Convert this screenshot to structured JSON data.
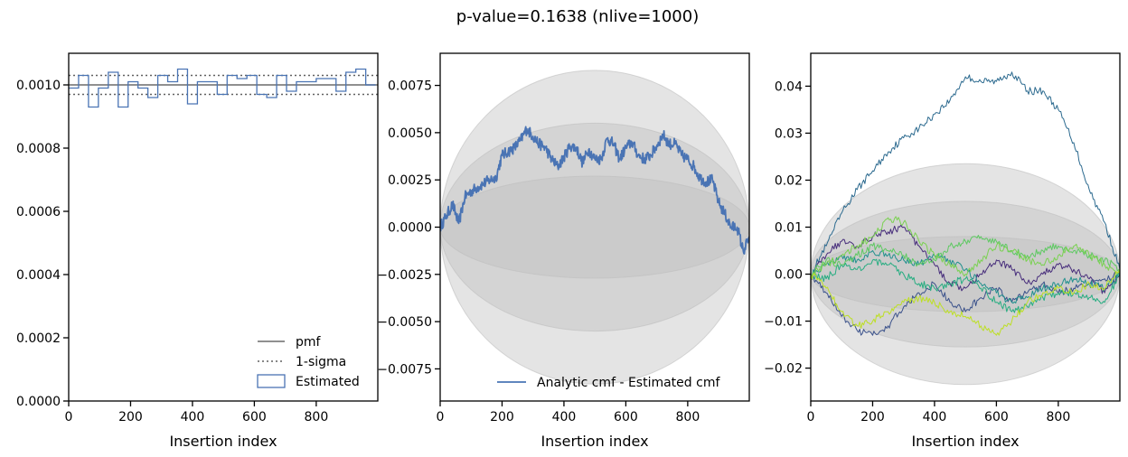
{
  "figure": {
    "title": "p-value=0.1638 (nlive=1000)"
  },
  "chart_data": [
    {
      "type": "line",
      "panel": "pmf",
      "xlabel": "Insertion index",
      "ylabel": "",
      "xlim": [
        0,
        999
      ],
      "ylim": [
        0,
        0.0011
      ],
      "xticks": [
        0,
        200,
        400,
        600,
        800
      ],
      "yticks": [
        0.0,
        0.0002,
        0.0004,
        0.0006,
        0.0008,
        0.001
      ],
      "ytick_labels": [
        "0.0000",
        "0.0002",
        "0.0004",
        "0.0006",
        "0.0008",
        "0.0010"
      ],
      "pmf": 0.001,
      "sigma_band": [
        0.00097,
        0.00103
      ],
      "histogram": {
        "bin_width": 32,
        "values": [
          0.00099,
          0.00103,
          0.00093,
          0.00099,
          0.00104,
          0.00093,
          0.00101,
          0.00099,
          0.00096,
          0.00103,
          0.00101,
          0.00105,
          0.00094,
          0.00101,
          0.00101,
          0.00097,
          0.00103,
          0.00102,
          0.00103,
          0.00097,
          0.00096,
          0.00103,
          0.00098,
          0.00101,
          0.00101,
          0.00102,
          0.00102,
          0.00098,
          0.00104,
          0.00105,
          0.001
        ]
      },
      "legend": {
        "placement": "lower-right",
        "entries": [
          "pmf",
          "1-sigma",
          "Estimated"
        ]
      },
      "colors": {
        "pmf": "#808080",
        "sigma": "#606060",
        "estimated": "#4a74b4"
      }
    },
    {
      "type": "line",
      "panel": "cmf-difference",
      "xlabel": "Insertion index",
      "ylabel": "",
      "xlim": [
        0,
        999
      ],
      "ylim": [
        -0.0092,
        0.0092
      ],
      "xticks": [
        0,
        200,
        400,
        600,
        800
      ],
      "yticks": [
        0.0075,
        0.005,
        0.0025,
        0.0,
        -0.0025,
        -0.005,
        -0.0075
      ],
      "ytick_labels": [
        "0.0075",
        "0.0050",
        "0.0025",
        "0.0000",
        "−0.0025",
        "−0.0050",
        "−0.0075"
      ],
      "sigma_bands": [
        0.0027,
        0.0055,
        0.0083
      ],
      "series": [
        {
          "name": "Analytic cmf - Estimated cmf",
          "x": [
            0,
            20,
            40,
            60,
            80,
            100,
            120,
            140,
            160,
            180,
            200,
            220,
            240,
            260,
            280,
            300,
            320,
            340,
            360,
            380,
            400,
            420,
            440,
            460,
            480,
            500,
            520,
            540,
            560,
            580,
            600,
            620,
            640,
            660,
            680,
            700,
            720,
            740,
            760,
            780,
            800,
            820,
            840,
            860,
            880,
            900,
            920,
            940,
            960,
            980,
            999
          ],
          "y": [
            0.0,
            0.0006,
            0.0012,
            0.0002,
            0.0016,
            0.0019,
            0.0021,
            0.0023,
            0.0025,
            0.0026,
            0.0038,
            0.004,
            0.0042,
            0.0046,
            0.0052,
            0.0048,
            0.0044,
            0.0042,
            0.0036,
            0.0032,
            0.0037,
            0.0043,
            0.0042,
            0.0034,
            0.0041,
            0.0036,
            0.0036,
            0.0047,
            0.0044,
            0.0036,
            0.0042,
            0.0045,
            0.0038,
            0.0036,
            0.0038,
            0.0043,
            0.0049,
            0.0044,
            0.0044,
            0.0038,
            0.0036,
            0.0032,
            0.0026,
            0.0024,
            0.0025,
            0.0013,
            0.0007,
            0.0,
            0.0,
            -0.0013,
            -0.0005
          ]
        }
      ],
      "legend": {
        "placement": "lower-right",
        "entries": [
          "Analytic cmf - Estimated cmf"
        ]
      },
      "colors": {
        "series": "#4a74b4",
        "band": "#bebebe"
      }
    },
    {
      "type": "line",
      "panel": "multiple-runs",
      "xlabel": "Insertion index",
      "ylabel": "",
      "xlim": [
        0,
        999
      ],
      "ylim": [
        -0.027,
        0.047
      ],
      "xticks": [
        0,
        200,
        400,
        600,
        800
      ],
      "yticks": [
        0.04,
        0.03,
        0.02,
        0.01,
        0.0,
        -0.01,
        -0.02
      ],
      "ytick_labels": [
        "0.04",
        "0.03",
        "0.02",
        "0.01",
        "0.00",
        "−0.01",
        "−0.02"
      ],
      "sigma_bands": [
        0.008,
        0.0155,
        0.0235
      ],
      "series": [
        {
          "x": [
            0,
            50,
            100,
            150,
            200,
            250,
            300,
            350,
            400,
            450,
            500,
            550,
            600,
            650,
            700,
            750,
            800,
            850,
            900,
            950,
            999
          ],
          "y": [
            0.0,
            0.006,
            0.013,
            0.018,
            0.022,
            0.026,
            0.029,
            0.031,
            0.034,
            0.037,
            0.042,
            0.041,
            0.041,
            0.043,
            0.039,
            0.039,
            0.035,
            0.028,
            0.018,
            0.011,
            0.001
          ]
        },
        {
          "x": [
            0,
            50,
            100,
            150,
            200,
            250,
            300,
            350,
            400,
            450,
            500,
            550,
            600,
            650,
            700,
            750,
            800,
            850,
            900,
            950,
            999
          ],
          "y": [
            0.0,
            0.004,
            0.007,
            0.006,
            0.008,
            0.009,
            0.01,
            0.006,
            0.002,
            -0.002,
            -0.003,
            0.0,
            0.003,
            0.001,
            -0.002,
            0.0,
            0.002,
            0.001,
            -0.001,
            -0.004,
            0.0
          ]
        },
        {
          "x": [
            0,
            50,
            100,
            150,
            200,
            250,
            300,
            350,
            400,
            450,
            500,
            550,
            600,
            650,
            700,
            750,
            800,
            850,
            900,
            950,
            999
          ],
          "y": [
            0.0,
            -0.004,
            -0.009,
            -0.012,
            -0.013,
            -0.011,
            -0.007,
            -0.004,
            -0.002,
            -0.006,
            -0.008,
            -0.005,
            -0.003,
            -0.006,
            -0.004,
            -0.002,
            -0.004,
            -0.003,
            -0.002,
            -0.001,
            0.0
          ]
        },
        {
          "x": [
            0,
            50,
            100,
            150,
            200,
            250,
            300,
            350,
            400,
            450,
            500,
            550,
            600,
            650,
            700,
            750,
            800,
            850,
            900,
            950,
            999
          ],
          "y": [
            0.0,
            0.002,
            0.004,
            0.003,
            0.005,
            0.004,
            0.003,
            0.002,
            0.004,
            0.003,
            0.001,
            -0.002,
            -0.004,
            -0.006,
            -0.005,
            -0.003,
            -0.002,
            -0.001,
            -0.002,
            -0.003,
            0.0
          ]
        },
        {
          "x": [
            0,
            50,
            100,
            150,
            200,
            250,
            300,
            350,
            400,
            450,
            500,
            550,
            600,
            650,
            700,
            750,
            800,
            850,
            900,
            950,
            999
          ],
          "y": [
            0.0,
            -0.001,
            0.002,
            0.001,
            0.003,
            0.002,
            0.0,
            -0.002,
            -0.003,
            -0.002,
            -0.001,
            -0.003,
            -0.006,
            -0.008,
            -0.007,
            -0.005,
            -0.004,
            -0.004,
            -0.005,
            -0.006,
            0.0
          ]
        },
        {
          "x": [
            0,
            50,
            100,
            150,
            200,
            250,
            300,
            350,
            400,
            450,
            500,
            550,
            600,
            650,
            700,
            750,
            800,
            850,
            900,
            950,
            999
          ],
          "y": [
            0.0,
            0.003,
            0.002,
            0.004,
            0.006,
            0.005,
            0.004,
            0.002,
            0.003,
            0.006,
            0.007,
            0.008,
            0.007,
            0.005,
            0.004,
            0.005,
            0.006,
            0.005,
            0.004,
            0.003,
            0.001
          ]
        },
        {
          "x": [
            0,
            50,
            100,
            150,
            200,
            250,
            300,
            350,
            400,
            450,
            500,
            550,
            600,
            650,
            700,
            750,
            800,
            850,
            900,
            950,
            999
          ],
          "y": [
            0.0,
            0.002,
            0.004,
            0.006,
            0.008,
            0.012,
            0.011,
            0.007,
            0.004,
            0.002,
            0.0,
            0.003,
            0.006,
            0.005,
            0.003,
            0.002,
            0.004,
            0.006,
            0.004,
            0.002,
            0.0
          ]
        },
        {
          "x": [
            0,
            50,
            100,
            150,
            200,
            250,
            300,
            350,
            400,
            450,
            500,
            550,
            600,
            650,
            700,
            750,
            800,
            850,
            900,
            950,
            999
          ],
          "y": [
            0.0,
            -0.003,
            -0.008,
            -0.011,
            -0.01,
            -0.008,
            -0.006,
            -0.005,
            -0.006,
            -0.008,
            -0.009,
            -0.011,
            -0.013,
            -0.01,
            -0.006,
            -0.004,
            -0.003,
            -0.004,
            -0.002,
            -0.003,
            0.001
          ]
        }
      ],
      "colors": {
        "series": [
          "#2c6a8f",
          "#472d7b",
          "#3b528b",
          "#21908d",
          "#27ad81",
          "#5ec962",
          "#7ad151",
          "#bddf26"
        ],
        "band": "#bebebe"
      }
    }
  ]
}
